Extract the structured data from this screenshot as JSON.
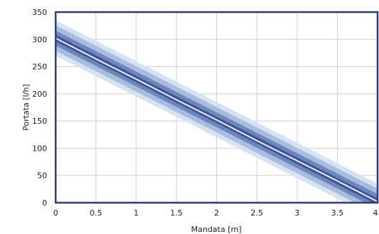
{
  "chart_data": {
    "type": "line",
    "title": "",
    "xlabel": "Mandata [m]",
    "ylabel": "Portata [l/h]",
    "xlim": [
      0,
      4
    ],
    "ylim": [
      0,
      350
    ],
    "x_ticks": [
      0,
      0.5,
      1,
      1.5,
      2,
      2.5,
      3,
      3.5,
      4
    ],
    "x_tick_labels": [
      "0",
      "0.5",
      "1",
      "1.5",
      "2",
      "2.5",
      "3",
      "3.5",
      "4"
    ],
    "y_ticks": [
      0,
      50,
      100,
      150,
      200,
      250,
      300,
      350
    ],
    "y_tick_labels": [
      "0",
      "50",
      "100",
      "150",
      "200",
      "250",
      "300",
      "350"
    ],
    "grid": true,
    "legend": "none",
    "series": [
      {
        "x": [
          0,
          0.5,
          1,
          1.5,
          2,
          2.5,
          3,
          3.5,
          4
        ],
        "values": [
          302,
          264,
          227,
          189,
          152,
          114,
          77,
          40,
          2
        ]
      }
    ],
    "band": {
      "upper": [
        [
          0,
          335
        ],
        [
          4,
          35
        ]
      ],
      "lower": [
        [
          0,
          270
        ],
        [
          4,
          -30
        ]
      ]
    },
    "colors": {
      "band_outer": "#d5e2f3",
      "band_mid": "#a8bcde",
      "band_inner": "#6e86bd",
      "band_core": "#3e5498",
      "line": "#e8eefa",
      "frame": "#2a3a7a",
      "grid": "#cfcfcf"
    }
  }
}
